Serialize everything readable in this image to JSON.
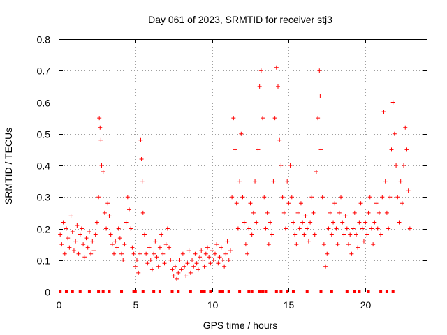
{
  "chart_data": {
    "type": "scatter",
    "title": "Day 061 of 2023, SRMTID for receiver stj3",
    "xlabel": "GPS time / hours",
    "ylabel": "SRMTID / TECUs",
    "xlim": [
      0,
      24
    ],
    "ylim": [
      0,
      0.8
    ],
    "grid": true,
    "x_ticks": [
      0,
      5,
      10,
      15,
      20
    ],
    "x_tick_labels": [
      "0",
      "5",
      "10",
      "15",
      "20"
    ],
    "y_ticks": [
      0,
      0.1,
      0.2,
      0.3,
      0.4,
      0.5,
      0.6,
      0.7,
      0.8
    ],
    "y_tick_labels": [
      "0",
      "0.1",
      "0.2",
      "0.3",
      "0.4",
      "0.5",
      "0.6",
      "0.7",
      "0.8"
    ],
    "marker": "plus",
    "color": "#ff0000",
    "series": [
      {
        "name": "SRMTID",
        "points": [
          [
            0.1,
            0.18
          ],
          [
            0.2,
            0.15
          ],
          [
            0.3,
            0.22
          ],
          [
            0.4,
            0.12
          ],
          [
            0.5,
            0.2
          ],
          [
            0.6,
            0.17
          ],
          [
            0.7,
            0.14
          ],
          [
            0.8,
            0.24
          ],
          [
            0.9,
            0.19
          ],
          [
            1.0,
            0.13
          ],
          [
            1.1,
            0.16
          ],
          [
            1.2,
            0.21
          ],
          [
            1.3,
            0.12
          ],
          [
            1.4,
            0.18
          ],
          [
            1.5,
            0.2
          ],
          [
            1.6,
            0.15
          ],
          [
            1.7,
            0.11
          ],
          [
            1.8,
            0.17
          ],
          [
            1.9,
            0.14
          ],
          [
            2.0,
            0.19
          ],
          [
            2.1,
            0.12
          ],
          [
            2.2,
            0.16
          ],
          [
            2.3,
            0.13
          ],
          [
            2.4,
            0.18
          ],
          [
            2.5,
            0.22
          ],
          [
            2.6,
            0.3
          ],
          [
            2.65,
            0.55
          ],
          [
            2.7,
            0.52
          ],
          [
            2.75,
            0.48
          ],
          [
            2.8,
            0.4
          ],
          [
            2.9,
            0.38
          ],
          [
            3.0,
            0.25
          ],
          [
            3.1,
            0.2
          ],
          [
            3.2,
            0.28
          ],
          [
            3.3,
            0.24
          ],
          [
            3.4,
            0.18
          ],
          [
            3.5,
            0.15
          ],
          [
            3.6,
            0.12
          ],
          [
            3.7,
            0.16
          ],
          [
            3.8,
            0.14
          ],
          [
            3.9,
            0.2
          ],
          [
            4.0,
            0.17
          ],
          [
            4.1,
            0.12
          ],
          [
            4.2,
            0.1
          ],
          [
            4.3,
            0.15
          ],
          [
            4.4,
            0.22
          ],
          [
            4.5,
            0.3
          ],
          [
            4.6,
            0.26
          ],
          [
            4.7,
            0.2
          ],
          [
            4.8,
            0.14
          ],
          [
            4.9,
            0.12
          ],
          [
            5.0,
            0.08
          ],
          [
            5.1,
            0.1
          ],
          [
            5.2,
            0.06
          ],
          [
            5.3,
            0.12
          ],
          [
            5.35,
            0.48
          ],
          [
            5.4,
            0.42
          ],
          [
            5.45,
            0.35
          ],
          [
            5.5,
            0.25
          ],
          [
            5.6,
            0.18
          ],
          [
            5.7,
            0.12
          ],
          [
            5.8,
            0.09
          ],
          [
            5.9,
            0.14
          ],
          [
            6.0,
            0.1
          ],
          [
            6.1,
            0.07
          ],
          [
            6.2,
            0.12
          ],
          [
            6.3,
            0.16
          ],
          [
            6.4,
            0.11
          ],
          [
            6.5,
            0.08
          ],
          [
            6.6,
            0.14
          ],
          [
            6.7,
            0.18
          ],
          [
            6.8,
            0.12
          ],
          [
            6.9,
            0.09
          ],
          [
            7.0,
            0.15
          ],
          [
            7.1,
            0.2
          ],
          [
            7.2,
            0.14
          ],
          [
            7.3,
            0.1
          ],
          [
            7.4,
            0.07
          ],
          [
            7.5,
            0.05
          ],
          [
            7.6,
            0.08
          ],
          [
            7.7,
            0.04
          ],
          [
            7.8,
            0.06
          ],
          [
            7.9,
            0.1
          ],
          [
            8.0,
            0.07
          ],
          [
            8.1,
            0.12
          ],
          [
            8.2,
            0.08
          ],
          [
            8.3,
            0.05
          ],
          [
            8.4,
            0.09
          ],
          [
            8.5,
            0.13
          ],
          [
            8.6,
            0.06
          ],
          [
            8.7,
            0.1
          ],
          [
            8.8,
            0.08
          ],
          [
            8.9,
            0.12
          ],
          [
            9.0,
            0.09
          ],
          [
            9.1,
            0.07
          ],
          [
            9.2,
            0.11
          ],
          [
            9.3,
            0.13
          ],
          [
            9.4,
            0.1
          ],
          [
            9.5,
            0.08
          ],
          [
            9.6,
            0.12
          ],
          [
            9.7,
            0.14
          ],
          [
            9.8,
            0.11
          ],
          [
            9.9,
            0.09
          ],
          [
            10.0,
            0.13
          ],
          [
            10.1,
            0.1
          ],
          [
            10.2,
            0.12
          ],
          [
            10.3,
            0.15
          ],
          [
            10.4,
            0.09
          ],
          [
            10.5,
            0.11
          ],
          [
            10.6,
            0.14
          ],
          [
            10.7,
            0.1
          ],
          [
            10.8,
            0.08
          ],
          [
            10.9,
            0.12
          ],
          [
            11.0,
            0.16
          ],
          [
            11.1,
            0.1
          ],
          [
            11.2,
            0.13
          ],
          [
            11.3,
            0.3
          ],
          [
            11.4,
            0.55
          ],
          [
            11.5,
            0.45
          ],
          [
            11.6,
            0.28
          ],
          [
            11.7,
            0.2
          ],
          [
            11.8,
            0.35
          ],
          [
            11.9,
            0.5
          ],
          [
            12.0,
            0.3
          ],
          [
            12.1,
            0.22
          ],
          [
            12.2,
            0.15
          ],
          [
            12.3,
            0.12
          ],
          [
            12.4,
            0.2
          ],
          [
            12.5,
            0.28
          ],
          [
            12.6,
            0.18
          ],
          [
            12.7,
            0.25
          ],
          [
            12.8,
            0.35
          ],
          [
            12.9,
            0.22
          ],
          [
            13.0,
            0.45
          ],
          [
            13.1,
            0.65
          ],
          [
            13.2,
            0.7
          ],
          [
            13.3,
            0.55
          ],
          [
            13.4,
            0.3
          ],
          [
            13.5,
            0.2
          ],
          [
            13.6,
            0.25
          ],
          [
            13.7,
            0.15
          ],
          [
            13.8,
            0.22
          ],
          [
            13.9,
            0.18
          ],
          [
            14.0,
            0.35
          ],
          [
            14.1,
            0.55
          ],
          [
            14.2,
            0.71
          ],
          [
            14.3,
            0.65
          ],
          [
            14.4,
            0.48
          ],
          [
            14.5,
            0.4
          ],
          [
            14.6,
            0.3
          ],
          [
            14.7,
            0.25
          ],
          [
            14.8,
            0.2
          ],
          [
            14.9,
            0.35
          ],
          [
            15.0,
            0.28
          ],
          [
            15.1,
            0.4
          ],
          [
            15.2,
            0.3
          ],
          [
            15.3,
            0.22
          ],
          [
            15.4,
            0.18
          ],
          [
            15.5,
            0.15
          ],
          [
            15.6,
            0.25
          ],
          [
            15.7,
            0.2
          ],
          [
            15.8,
            0.28
          ],
          [
            15.9,
            0.22
          ],
          [
            16.0,
            0.18
          ],
          [
            16.1,
            0.24
          ],
          [
            16.2,
            0.2
          ],
          [
            16.3,
            0.16
          ],
          [
            16.4,
            0.22
          ],
          [
            16.5,
            0.3
          ],
          [
            16.6,
            0.25
          ],
          [
            16.7,
            0.18
          ],
          [
            16.8,
            0.38
          ],
          [
            16.9,
            0.55
          ],
          [
            17.0,
            0.7
          ],
          [
            17.05,
            0.62
          ],
          [
            17.1,
            0.45
          ],
          [
            17.2,
            0.3
          ],
          [
            17.3,
            0.15
          ],
          [
            17.4,
            0.08
          ],
          [
            17.5,
            0.12
          ],
          [
            17.6,
            0.2
          ],
          [
            17.7,
            0.25
          ],
          [
            17.8,
            0.18
          ],
          [
            17.9,
            0.22
          ],
          [
            18.0,
            0.28
          ],
          [
            18.1,
            0.2
          ],
          [
            18.2,
            0.15
          ],
          [
            18.3,
            0.25
          ],
          [
            18.4,
            0.3
          ],
          [
            18.5,
            0.22
          ],
          [
            18.6,
            0.18
          ],
          [
            18.7,
            0.24
          ],
          [
            18.8,
            0.2
          ],
          [
            18.9,
            0.15
          ],
          [
            19.0,
            0.18
          ],
          [
            19.1,
            0.12
          ],
          [
            19.2,
            0.2
          ],
          [
            19.3,
            0.25
          ],
          [
            19.4,
            0.18
          ],
          [
            19.5,
            0.14
          ],
          [
            19.6,
            0.22
          ],
          [
            19.7,
            0.28
          ],
          [
            19.8,
            0.2
          ],
          [
            19.9,
            0.16
          ],
          [
            20.0,
            0.22
          ],
          [
            20.1,
            0.18
          ],
          [
            20.2,
            0.25
          ],
          [
            20.3,
            0.3
          ],
          [
            20.4,
            0.2
          ],
          [
            20.5,
            0.15
          ],
          [
            20.6,
            0.22
          ],
          [
            20.7,
            0.28
          ],
          [
            20.8,
            0.2
          ],
          [
            20.9,
            0.25
          ],
          [
            21.0,
            0.18
          ],
          [
            21.1,
            0.3
          ],
          [
            21.2,
            0.57
          ],
          [
            21.3,
            0.35
          ],
          [
            21.4,
            0.25
          ],
          [
            21.5,
            0.2
          ],
          [
            21.6,
            0.3
          ],
          [
            21.7,
            0.45
          ],
          [
            21.8,
            0.6
          ],
          [
            21.9,
            0.5
          ],
          [
            22.0,
            0.4
          ],
          [
            22.1,
            0.3
          ],
          [
            22.2,
            0.22
          ],
          [
            22.3,
            0.35
          ],
          [
            22.4,
            0.28
          ],
          [
            22.5,
            0.4
          ],
          [
            22.6,
            0.52
          ],
          [
            22.7,
            0.45
          ],
          [
            22.8,
            0.32
          ],
          [
            22.9,
            0.2
          ]
        ],
        "zero_points": [
          0.1,
          0.5,
          0.9,
          1.4,
          2.0,
          2.6,
          2.9,
          3.3,
          4.1,
          4.9,
          5.0,
          5.5,
          6.2,
          6.6,
          7.4,
          7.8,
          8.6,
          9.3,
          9.5,
          9.9,
          10.5,
          10.7,
          11.1,
          11.8,
          12.4,
          12.6,
          13.1,
          13.3,
          13.5,
          14.2,
          14.5,
          14.9,
          15.3,
          16.2,
          17.1,
          17.8,
          18.8,
          19.3,
          19.6,
          20.2,
          21.0,
          21.4,
          21.8
        ]
      }
    ]
  }
}
